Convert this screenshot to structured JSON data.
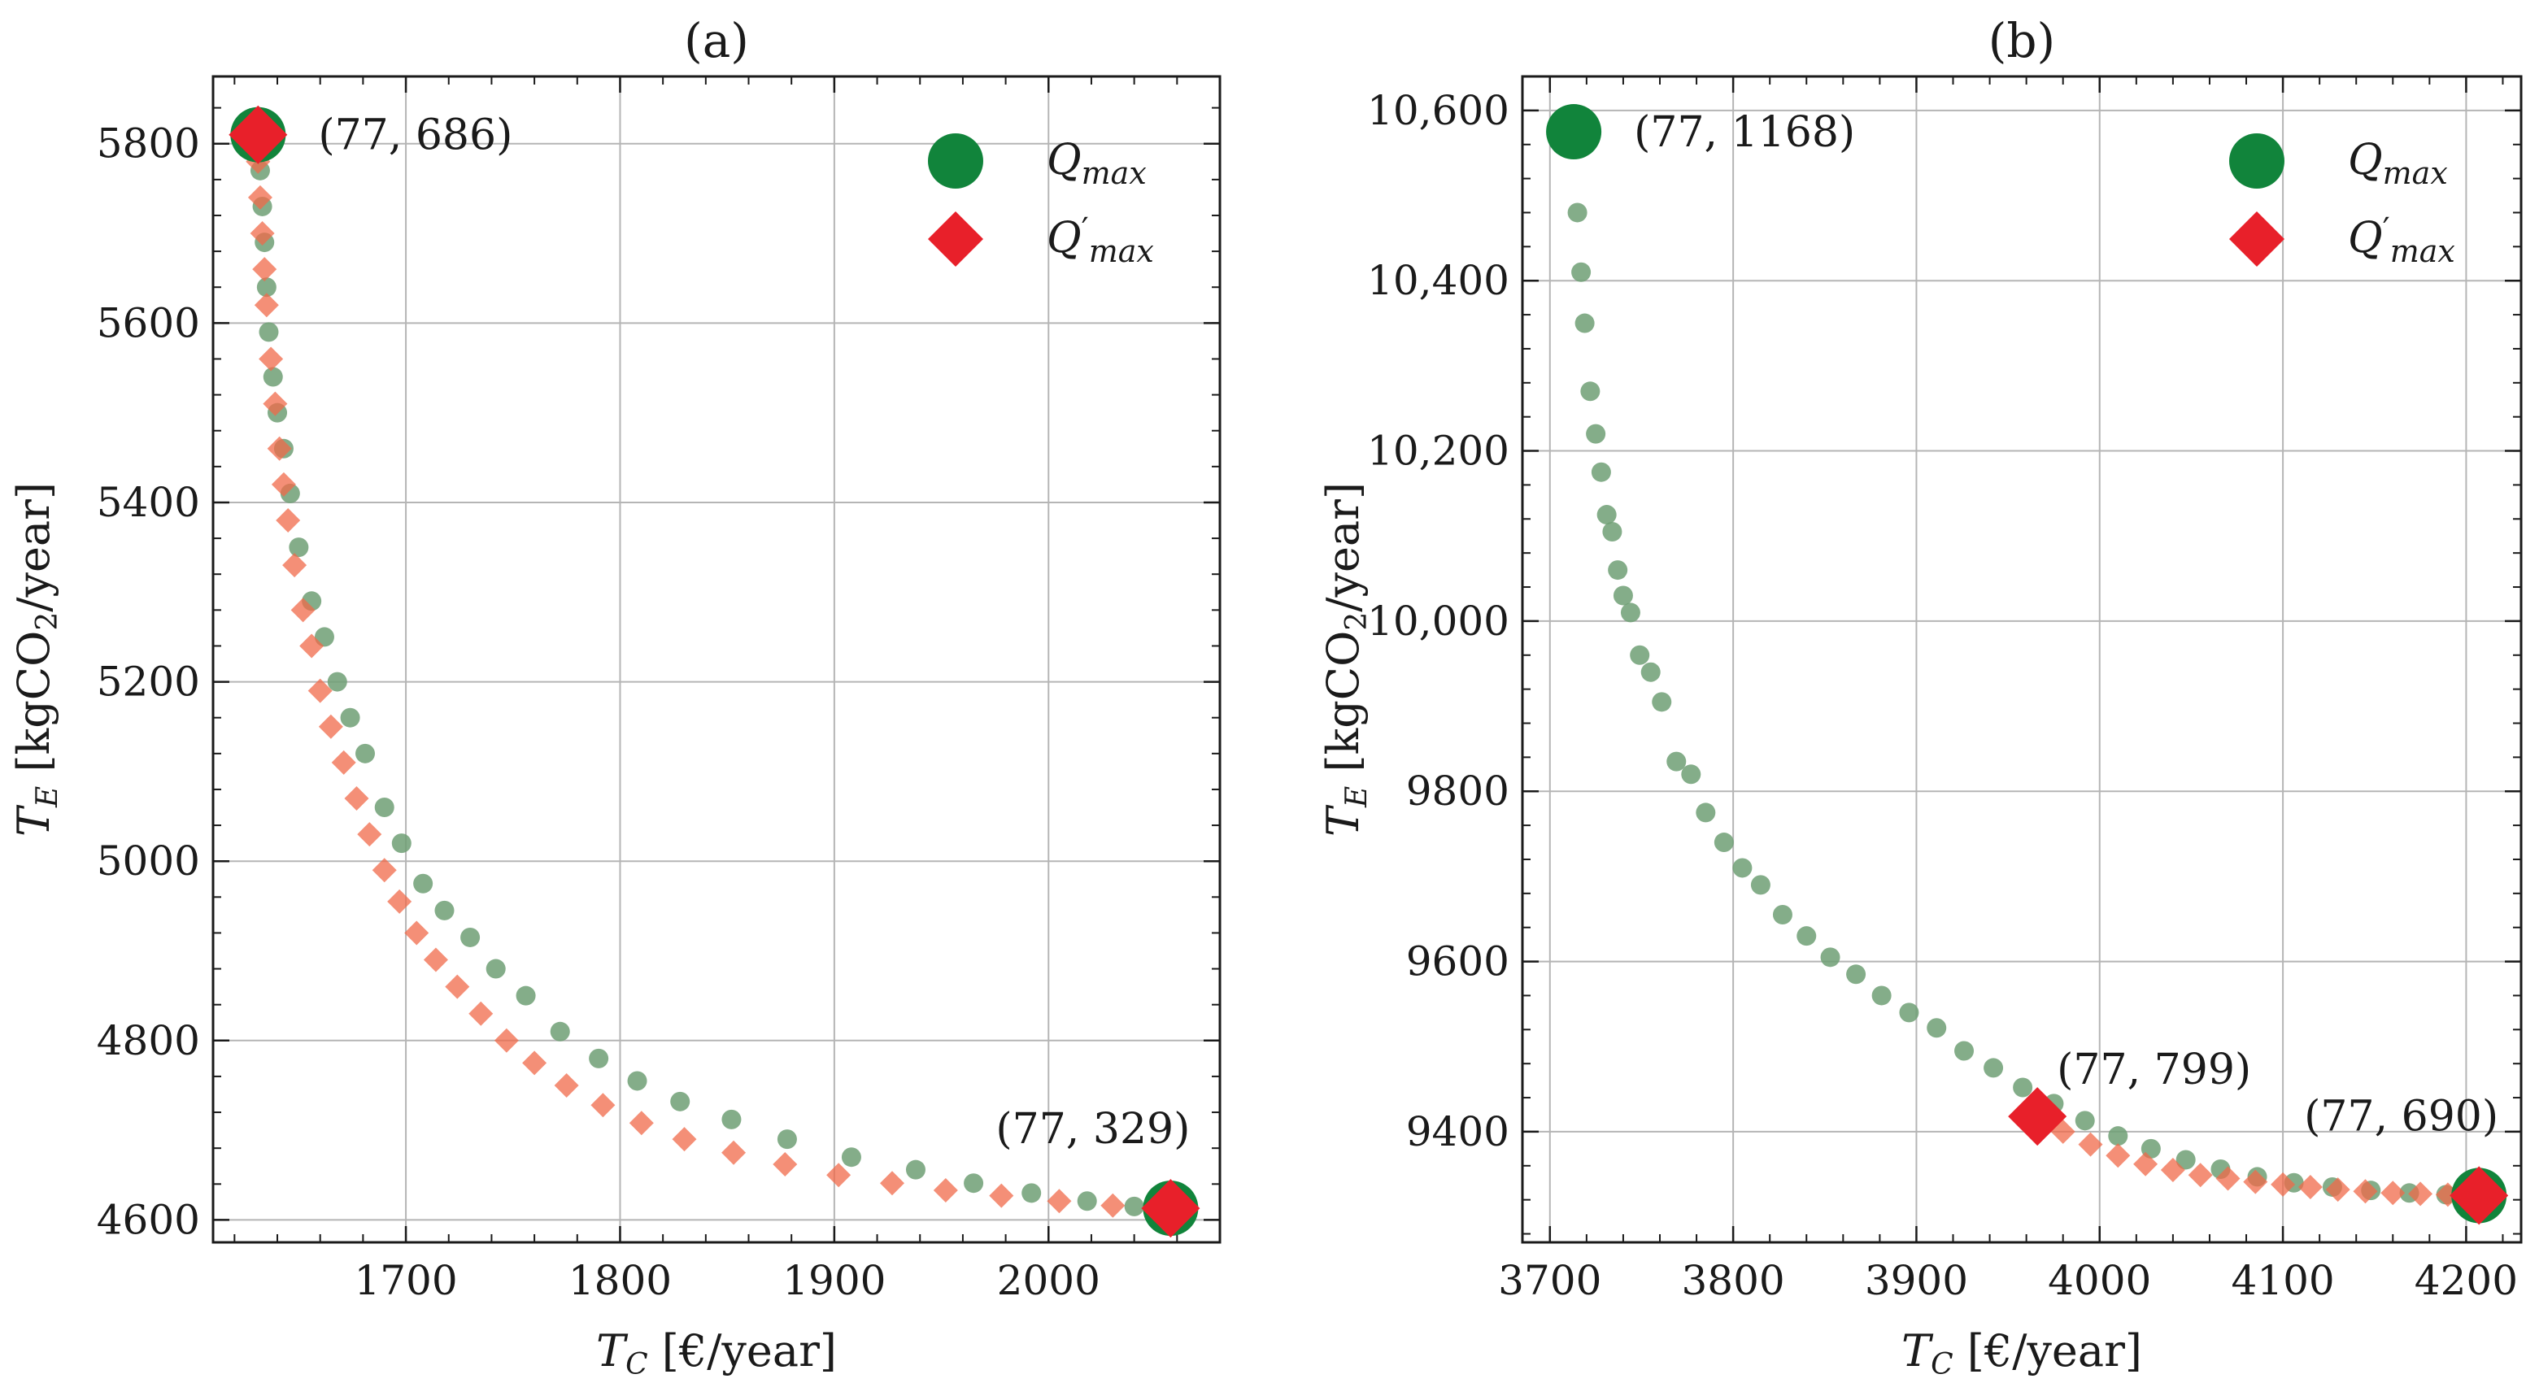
{
  "figure": {
    "colors": {
      "q_max_marker": "#11843b",
      "q_max_point": "#6f9f74",
      "q_prime_marker": "#e8202a",
      "q_prime_point": "#f06a4a",
      "grid": "#b5b5b5",
      "axis": "#1a1a1a"
    },
    "legend": [
      {
        "key": "q_max",
        "symbol": "Q",
        "subscript": "max",
        "prime": "",
        "marker": "circle",
        "color": "#11843b"
      },
      {
        "key": "q_prime_max",
        "symbol": "Q",
        "subscript": "max",
        "prime": "′",
        "marker": "diamond",
        "color": "#e8202a"
      }
    ]
  },
  "chart_data": [
    {
      "type": "scatter",
      "title": "(a)",
      "xlabel_main": "T",
      "xlabel_sub": "C",
      "xlabel_unit": " [€/year]",
      "ylabel_main": "T",
      "ylabel_sub": "E",
      "ylabel_unit_a": " [kgCO",
      "ylabel_unit_sub": "2",
      "ylabel_unit_b": "/year]",
      "xlim": [
        1610,
        2080
      ],
      "ylim": [
        4575,
        5875
      ],
      "xticks": [
        1700,
        1800,
        1900,
        2000
      ],
      "xtick_labels": [
        "1700",
        "1800",
        "1900",
        "2000"
      ],
      "yticks": [
        4600,
        4800,
        5000,
        5200,
        5400,
        5600,
        5800
      ],
      "ytick_labels": [
        "4600",
        "4800",
        "5000",
        "5200",
        "5400",
        "5600",
        "5800"
      ],
      "grid": true,
      "legend_position": "top-right",
      "series": [
        {
          "name": "Q_max frontier",
          "marker": "circle",
          "color": "#6f9f74",
          "x": [
            1631,
            1632,
            1633,
            1634,
            1635,
            1636,
            1638,
            1640,
            1643,
            1646,
            1650,
            1656,
            1662,
            1668,
            1674,
            1681,
            1690,
            1698,
            1708,
            1718,
            1730,
            1742,
            1756,
            1772,
            1790,
            1808,
            1828,
            1852,
            1878,
            1908,
            1938,
            1965,
            1992,
            2018,
            2040,
            2057
          ],
          "y": [
            5805,
            5770,
            5730,
            5690,
            5640,
            5590,
            5540,
            5500,
            5460,
            5410,
            5350,
            5290,
            5250,
            5200,
            5160,
            5120,
            5060,
            5020,
            4975,
            4945,
            4915,
            4880,
            4850,
            4810,
            4780,
            4755,
            4732,
            4712,
            4690,
            4670,
            4656,
            4641,
            4630,
            4621,
            4615,
            4612
          ]
        },
        {
          "name": "Q'_max frontier",
          "marker": "diamond",
          "color": "#f06a4a",
          "x": [
            1630,
            1631,
            1632,
            1633,
            1634,
            1635,
            1637,
            1639,
            1641,
            1643,
            1645,
            1648,
            1652,
            1656,
            1660,
            1665,
            1671,
            1677,
            1683,
            1690,
            1697,
            1705,
            1714,
            1724,
            1735,
            1747,
            1760,
            1775,
            1792,
            1810,
            1830,
            1853,
            1877,
            1902,
            1927,
            1952,
            1978,
            2005,
            2030,
            2050
          ],
          "y": [
            5810,
            5780,
            5740,
            5700,
            5660,
            5620,
            5560,
            5510,
            5460,
            5420,
            5380,
            5330,
            5280,
            5240,
            5190,
            5150,
            5110,
            5070,
            5030,
            4990,
            4955,
            4920,
            4890,
            4860,
            4830,
            4800,
            4775,
            4750,
            4728,
            4708,
            4690,
            4675,
            4662,
            4650,
            4641,
            4633,
            4627,
            4621,
            4616,
            4613
          ]
        }
      ],
      "highlights": [
        {
          "series": "Q_max",
          "marker": "circle",
          "x": 1631,
          "y": 5810,
          "label": "(77, 686)",
          "label_anchor": "right"
        },
        {
          "series": "Q'_max",
          "marker": "diamond",
          "x": 1631,
          "y": 5810,
          "label": "",
          "label_anchor": "right"
        },
        {
          "series": "Q_max",
          "marker": "circle",
          "x": 2057,
          "y": 4613,
          "label": "(77, 329)",
          "label_anchor": "above-left"
        },
        {
          "series": "Q'_max",
          "marker": "diamond",
          "x": 2057,
          "y": 4613,
          "label": "",
          "label_anchor": "above-left"
        }
      ]
    },
    {
      "type": "scatter",
      "title": "(b)",
      "xlabel_main": "T",
      "xlabel_sub": "C",
      "xlabel_unit": " [€/year]",
      "ylabel_main": "T",
      "ylabel_sub": "E",
      "ylabel_unit_a": " [kgCO",
      "ylabel_unit_sub": "2",
      "ylabel_unit_b": "/year]",
      "xlim": [
        3685,
        4230
      ],
      "ylim": [
        9270,
        10640
      ],
      "xticks": [
        3700,
        3800,
        3900,
        4000,
        4100,
        4200
      ],
      "xtick_labels": [
        "3700",
        "3800",
        "3900",
        "4000",
        "4100",
        "4200"
      ],
      "yticks": [
        9400,
        9600,
        9800,
        10000,
        10200,
        10400,
        10600
      ],
      "ytick_labels": [
        "9400",
        "9600",
        "9800",
        "10,000",
        "10,200",
        "10,400",
        "10,600"
      ],
      "grid": true,
      "legend_position": "top-right",
      "series": [
        {
          "name": "Q_max frontier",
          "marker": "circle",
          "color": "#6f9f74",
          "x": [
            3712,
            3715,
            3717,
            3719,
            3722,
            3725,
            3728,
            3731,
            3734,
            3737,
            3740,
            3744,
            3749,
            3755,
            3761,
            3769,
            3777,
            3785,
            3795,
            3805,
            3815,
            3827,
            3840,
            3853,
            3867,
            3881,
            3896,
            3911,
            3926,
            3942,
            3958,
            3975,
            3992,
            4010,
            4028,
            4047,
            4066,
            4086,
            4106,
            4127,
            4148,
            4169,
            4189,
            4206
          ],
          "y": [
            10580,
            10480,
            10410,
            10350,
            10270,
            10220,
            10175,
            10125,
            10105,
            10060,
            10030,
            10010,
            9960,
            9940,
            9905,
            9835,
            9820,
            9775,
            9740,
            9710,
            9690,
            9655,
            9630,
            9605,
            9585,
            9560,
            9540,
            9522,
            9495,
            9475,
            9452,
            9433,
            9413,
            9395,
            9380,
            9367,
            9356,
            9347,
            9340,
            9335,
            9331,
            9328,
            9326,
            9325
          ]
        },
        {
          "name": "Q'_max frontier",
          "marker": "diamond",
          "color": "#f06a4a",
          "x": [
            3966,
            3980,
            3995,
            4010,
            4025,
            4040,
            4055,
            4070,
            4085,
            4100,
            4115,
            4130,
            4145,
            4160,
            4175,
            4190,
            4205
          ],
          "y": [
            9418,
            9400,
            9385,
            9372,
            9362,
            9355,
            9349,
            9345,
            9341,
            9338,
            9335,
            9332,
            9330,
            9328,
            9327,
            9326,
            9325
          ]
        }
      ],
      "highlights": [
        {
          "series": "Q_max",
          "marker": "circle",
          "x": 3713,
          "y": 10575,
          "label": "(77, 1168)",
          "label_anchor": "right"
        },
        {
          "series": "Q'_max",
          "marker": "diamond",
          "x": 3966,
          "y": 9418,
          "label": "(77, 799)",
          "label_anchor": "above-right"
        },
        {
          "series": "Q_max",
          "marker": "circle",
          "x": 4207,
          "y": 9325,
          "label": "(77, 690)",
          "label_anchor": "above-left"
        },
        {
          "series": "Q'_max",
          "marker": "diamond",
          "x": 4207,
          "y": 9325,
          "label": "",
          "label_anchor": "above-left"
        }
      ]
    }
  ]
}
